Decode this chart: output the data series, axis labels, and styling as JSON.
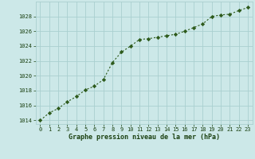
{
  "x": [
    0,
    1,
    2,
    3,
    4,
    5,
    6,
    7,
    8,
    9,
    10,
    11,
    12,
    13,
    14,
    15,
    16,
    17,
    18,
    19,
    20,
    21,
    22,
    23
  ],
  "y": [
    1014.0,
    1015.0,
    1015.6,
    1016.5,
    1017.2,
    1018.1,
    1018.6,
    1019.5,
    1021.8,
    1023.2,
    1024.0,
    1024.9,
    1025.0,
    1025.2,
    1025.4,
    1025.6,
    1026.0,
    1026.5,
    1027.0,
    1028.0,
    1028.2,
    1028.3,
    1028.8,
    1029.2
  ],
  "line_color": "#2d5a1b",
  "marker_color": "#2d5a1b",
  "bg_color": "#cce8e8",
  "grid_color": "#aacfcf",
  "xlabel": "Graphe pression niveau de la mer (hPa)",
  "xlabel_color": "#1a4010",
  "tick_color": "#1a4010",
  "ylim": [
    1013.5,
    1030.0
  ],
  "xlim": [
    -0.5,
    23.5
  ],
  "yticks": [
    1014,
    1016,
    1018,
    1020,
    1022,
    1024,
    1026,
    1028
  ],
  "xticks": [
    0,
    1,
    2,
    3,
    4,
    5,
    6,
    7,
    8,
    9,
    10,
    11,
    12,
    13,
    14,
    15,
    16,
    17,
    18,
    19,
    20,
    21,
    22,
    23
  ]
}
